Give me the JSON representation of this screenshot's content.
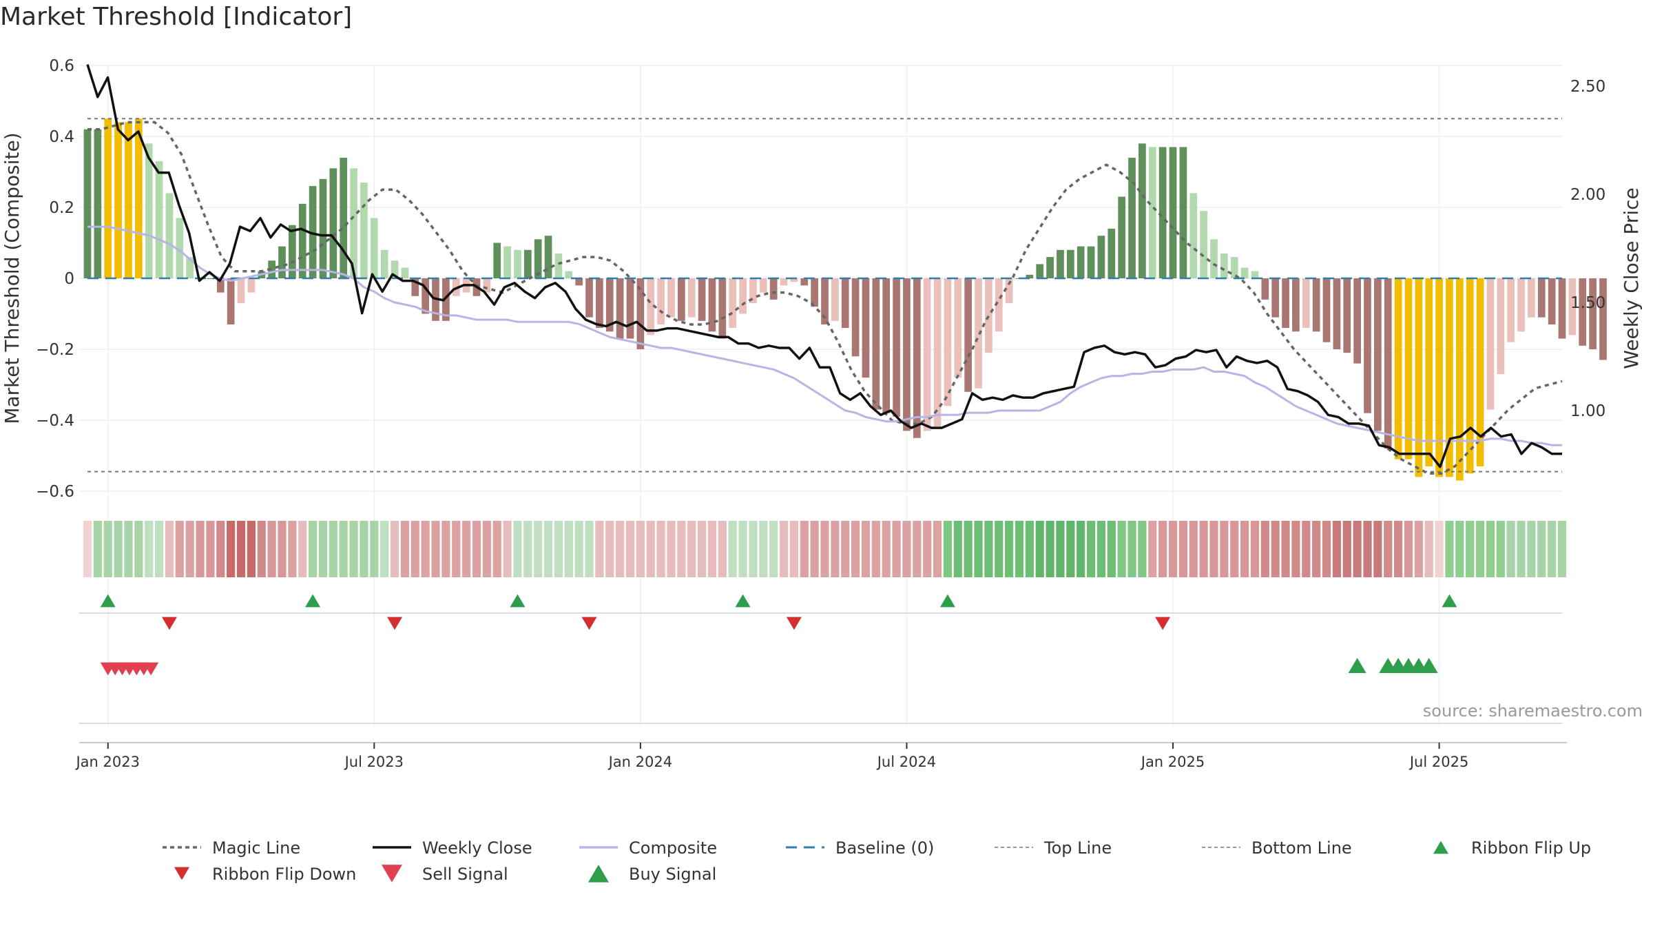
{
  "title": "Market Threshold [Indicator]",
  "source": "source: sharemaestro.com",
  "chart_data": {
    "type": "bar",
    "title": "Market Threshold [Indicator]",
    "ylabel": "Market Threshold (Composite)",
    "y2label": "Weekly Close Price",
    "ylim": [
      -0.62,
      0.62
    ],
    "y2lim": [
      0.6,
      2.62
    ],
    "yticks": [
      0.6,
      0.4,
      0.2,
      0,
      -0.2,
      -0.4,
      -0.6
    ],
    "yticklabels": [
      "0.6",
      "0.4",
      "0.2",
      "0",
      "−0.2",
      "−0.4",
      "−0.6"
    ],
    "y2ticks": [
      2.5,
      2.0,
      1.5,
      1.0
    ],
    "y2ticklabels": [
      "2.50",
      "2.00",
      "1.50",
      "1.00"
    ],
    "xticklabels": [
      "Jan 2023",
      "Jul 2023",
      "Jan 2024",
      "Jul 2024",
      "Jan 2025",
      "Jul 2025"
    ],
    "xtick_index": [
      2,
      28,
      54,
      80,
      106,
      132
    ],
    "n_weeks": 145,
    "top_line": 0.45,
    "bottom_line": -0.545,
    "baseline": 0,
    "grid": true,
    "legend_position": "bottom",
    "composite_bars": [
      0.42,
      0.42,
      0.45,
      0.44,
      0.44,
      0.45,
      0.38,
      0.33,
      0.24,
      0.17,
      0.06,
      0,
      0,
      -0.04,
      -0.13,
      -0.07,
      -0.04,
      0.02,
      0.05,
      0.09,
      0.15,
      0.21,
      0.26,
      0.28,
      0.31,
      0.34,
      0.31,
      0.27,
      0.17,
      0.08,
      0.05,
      0.03,
      -0.05,
      -0.1,
      -0.12,
      -0.12,
      -0.05,
      -0.04,
      -0.05,
      -0.04,
      0.1,
      0.09,
      0.08,
      0.08,
      0.11,
      0.12,
      0.07,
      0.02,
      -0.02,
      -0.11,
      -0.14,
      -0.15,
      -0.17,
      -0.17,
      -0.2,
      -0.16,
      -0.13,
      -0.11,
      -0.12,
      -0.11,
      -0.12,
      -0.15,
      -0.17,
      -0.14,
      -0.1,
      -0.07,
      -0.04,
      -0.06,
      -0.02,
      -0.01,
      -0.02,
      -0.08,
      -0.13,
      -0.12,
      -0.14,
      -0.22,
      -0.28,
      -0.37,
      -0.38,
      -0.39,
      -0.43,
      -0.45,
      -0.43,
      -0.42,
      -0.36,
      -0.28,
      -0.32,
      -0.31,
      -0.21,
      -0.15,
      -0.07,
      0,
      0.01,
      0.04,
      0.06,
      0.08,
      0.08,
      0.09,
      0.09,
      0.12,
      0.14,
      0.23,
      0.34,
      0.38,
      0.37,
      0.37,
      0.37,
      0.37,
      0.24,
      0.19,
      0.11,
      0.07,
      0.06,
      0.03,
      0.02,
      -0.06,
      -0.11,
      -0.14,
      -0.15,
      -0.14,
      -0.15,
      -0.18,
      -0.2,
      -0.21,
      -0.24,
      -0.38,
      -0.43,
      -0.48,
      -0.51,
      -0.51,
      -0.56,
      -0.53,
      -0.56,
      -0.56,
      -0.57,
      -0.55,
      -0.53,
      -0.37,
      -0.27,
      -0.18,
      -0.15,
      -0.11,
      -0.11,
      -0.13,
      -0.17,
      -0.16,
      -0.19,
      -0.2,
      -0.23
    ],
    "bar_colors": {
      "strong_positive": "#5f8f5b",
      "weak_positive": "#b2d9ae",
      "strong_negative": "#aa7672",
      "weak_negative": "#ebc0bb",
      "extreme": "#f2bc00"
    },
    "magic_line": [
      0.42,
      0.42,
      0.43,
      0.44,
      0.44,
      0.44,
      0.41,
      0.35,
      0.25,
      0.15,
      0.06,
      0.02,
      0.02,
      0.02,
      0.03,
      0.04,
      0.06,
      0.08,
      0.11,
      0.14,
      0.18,
      0.22,
      0.25,
      0.25,
      0.22,
      0.18,
      0.13,
      0.08,
      0.02,
      -0.02,
      -0.03,
      -0.04,
      -0.02,
      0.0,
      0.02,
      0.04,
      0.05,
      0.06,
      0.06,
      0.05,
      0.02,
      -0.02,
      -0.07,
      -0.1,
      -0.12,
      -0.13,
      -0.13,
      -0.12,
      -0.1,
      -0.07,
      -0.05,
      -0.04,
      -0.04,
      -0.05,
      -0.07,
      -0.11,
      -0.18,
      -0.26,
      -0.32,
      -0.36,
      -0.4,
      -0.41,
      -0.41,
      -0.39,
      -0.34,
      -0.27,
      -0.2,
      -0.12,
      -0.06,
      0.0,
      0.08,
      0.14,
      0.2,
      0.25,
      0.28,
      0.3,
      0.32,
      0.3,
      0.27,
      0.22,
      0.18,
      0.14,
      0.1,
      0.07,
      0.04,
      0.02,
      0.0,
      -0.04,
      -0.1,
      -0.15,
      -0.2,
      -0.24,
      -0.28,
      -0.32,
      -0.36,
      -0.4,
      -0.44,
      -0.48,
      -0.51,
      -0.53,
      -0.55,
      -0.55,
      -0.53,
      -0.49,
      -0.45,
      -0.41,
      -0.37,
      -0.34,
      -0.31,
      -0.3,
      -0.29
    ],
    "magic_line_start_index": 0,
    "magic_line_step": 1.3,
    "weekly_close": [
      2.6,
      2.45,
      2.54,
      2.3,
      2.25,
      2.29,
      2.17,
      2.1,
      2.1,
      1.95,
      1.82,
      1.6,
      1.64,
      1.6,
      1.68,
      1.85,
      1.83,
      1.89,
      1.8,
      1.86,
      1.83,
      1.84,
      1.82,
      1.81,
      1.81,
      1.75,
      1.68,
      1.45,
      1.63,
      1.55,
      1.63,
      1.6,
      1.6,
      1.58,
      1.52,
      1.51,
      1.56,
      1.58,
      1.58,
      1.55,
      1.49,
      1.57,
      1.59,
      1.55,
      1.52,
      1.57,
      1.59,
      1.55,
      1.47,
      1.42,
      1.4,
      1.39,
      1.41,
      1.39,
      1.41,
      1.37,
      1.37,
      1.38,
      1.38,
      1.37,
      1.36,
      1.35,
      1.34,
      1.34,
      1.31,
      1.31,
      1.29,
      1.3,
      1.29,
      1.29,
      1.24,
      1.29,
      1.2,
      1.2,
      1.08,
      1.05,
      1.08,
      1.02,
      0.98,
      1.0,
      0.95,
      0.92,
      0.94,
      0.92,
      0.92,
      0.94,
      0.96,
      1.08,
      1.05,
      1.06,
      1.05,
      1.07,
      1.06,
      1.06,
      1.08,
      1.09,
      1.1,
      1.11,
      1.27,
      1.29,
      1.3,
      1.27,
      1.26,
      1.27,
      1.26,
      1.2,
      1.21,
      1.24,
      1.25,
      1.28,
      1.27,
      1.28,
      1.2,
      1.25,
      1.23,
      1.22,
      1.23,
      1.2,
      1.1,
      1.09,
      1.07,
      1.04,
      0.98,
      0.97,
      0.94,
      0.94,
      0.93,
      0.84,
      0.83,
      0.8,
      0.8,
      0.8,
      0.8,
      0.74,
      0.87,
      0.88,
      0.92,
      0.88,
      0.92,
      0.88,
      0.89,
      0.8,
      0.85,
      0.83,
      0.8,
      0.8
    ],
    "composite_line": [
      1.85,
      1.85,
      1.85,
      1.84,
      1.83,
      1.82,
      1.81,
      1.79,
      1.77,
      1.74,
      1.7,
      1.66,
      1.63,
      1.61,
      1.6,
      1.61,
      1.62,
      1.63,
      1.64,
      1.65,
      1.65,
      1.65,
      1.65,
      1.65,
      1.64,
      1.63,
      1.61,
      1.57,
      1.55,
      1.52,
      1.5,
      1.49,
      1.48,
      1.46,
      1.45,
      1.44,
      1.44,
      1.43,
      1.42,
      1.42,
      1.42,
      1.42,
      1.41,
      1.41,
      1.41,
      1.41,
      1.41,
      1.41,
      1.4,
      1.38,
      1.36,
      1.34,
      1.33,
      1.32,
      1.31,
      1.3,
      1.29,
      1.29,
      1.28,
      1.27,
      1.26,
      1.25,
      1.24,
      1.23,
      1.22,
      1.21,
      1.2,
      1.19,
      1.17,
      1.15,
      1.12,
      1.09,
      1.06,
      1.03,
      1.0,
      0.99,
      0.97,
      0.96,
      0.95,
      0.95,
      0.96,
      0.97,
      0.97,
      0.98,
      0.98,
      0.98,
      0.99,
      0.99,
      0.99,
      1.0,
      1.0,
      1.0,
      1.0,
      1.0,
      1.02,
      1.04,
      1.08,
      1.11,
      1.13,
      1.15,
      1.16,
      1.16,
      1.17,
      1.17,
      1.18,
      1.18,
      1.19,
      1.19,
      1.19,
      1.2,
      1.18,
      1.18,
      1.17,
      1.16,
      1.13,
      1.11,
      1.08,
      1.05,
      1.02,
      1.0,
      0.98,
      0.96,
      0.94,
      0.93,
      0.92,
      0.91,
      0.9,
      0.89,
      0.88,
      0.87,
      0.86,
      0.86,
      0.86,
      0.86,
      0.86,
      0.86,
      0.86,
      0.87,
      0.87,
      0.86,
      0.86,
      0.85,
      0.85,
      0.84,
      0.84
    ],
    "ribbon": [
      "#f2d3d3",
      "#a6d4a6",
      "#a6d4a6",
      "#a6d4a6",
      "#a6d4a6",
      "#a6d4a6",
      "#c0dfc0",
      "#c0dfc0",
      "#e6bcbc",
      "#dca2a2",
      "#dca2a2",
      "#d89898",
      "#d89898",
      "#d08a8a",
      "#c86a6a",
      "#c86a6a",
      "#c86a6a",
      "#d08a8a",
      "#d89898",
      "#d89898",
      "#dca2a2",
      "#e6bcbc",
      "#a6d4a6",
      "#a6d4a6",
      "#a6d4a6",
      "#a6d4a6",
      "#a6d4a6",
      "#a6d4a6",
      "#a6d4a6",
      "#c0dfc0",
      "#e6bcbc",
      "#dca2a2",
      "#dca2a2",
      "#dca2a2",
      "#dca2a2",
      "#dca2a2",
      "#dca2a2",
      "#dca2a2",
      "#dca2a2",
      "#dca2a2",
      "#dca2a2",
      "#e6bcbc",
      "#c0dfc0",
      "#c0dfc0",
      "#c0dfc0",
      "#c0dfc0",
      "#c0dfc0",
      "#c0dfc0",
      "#c0dfc0",
      "#c0dfc0",
      "#e6bcbc",
      "#e6bcbc",
      "#e6bcbc",
      "#e6bcbc",
      "#e6bcbc",
      "#e6bcbc",
      "#e6bcbc",
      "#e6bcbc",
      "#e6bcbc",
      "#e6bcbc",
      "#e6bcbc",
      "#e6bcbc",
      "#e6bcbc",
      "#c0dfc0",
      "#c0dfc0",
      "#c0dfc0",
      "#c0dfc0",
      "#c0dfc0",
      "#e6bcbc",
      "#e6bcbc",
      "#dca2a2",
      "#dca2a2",
      "#dca2a2",
      "#dca2a2",
      "#dca2a2",
      "#dca2a2",
      "#dca2a2",
      "#dca2a2",
      "#dca2a2",
      "#dca2a2",
      "#dca2a2",
      "#dca2a2",
      "#dca2a2",
      "#dca2a2",
      "#81c784",
      "#6dbd74",
      "#6dbd74",
      "#6dbd74",
      "#6dbd74",
      "#6dbd74",
      "#6dbd74",
      "#6dbd74",
      "#6dbd74",
      "#5fb56a",
      "#5fb56a",
      "#5fb56a",
      "#5fb56a",
      "#5fb56a",
      "#6dbd74",
      "#6dbd74",
      "#6dbd74",
      "#81c784",
      "#81c784",
      "#81c784",
      "#dca2a2",
      "#d89898",
      "#d89898",
      "#d89898",
      "#d89898",
      "#d89898",
      "#d89898",
      "#d89898",
      "#d89898",
      "#d89898",
      "#d89898",
      "#d08a8a",
      "#d08a8a",
      "#d08a8a",
      "#d08a8a",
      "#d08a8a",
      "#d08a8a",
      "#d08a8a",
      "#c87a7a",
      "#c87a7a",
      "#c87a7a",
      "#c87a7a",
      "#c87a7a",
      "#d08a8a",
      "#d08a8a",
      "#d89898",
      "#dca2a2",
      "#e6bcbc",
      "#f2d3d3",
      "#8fce8f",
      "#8fce8f",
      "#8fce8f",
      "#8fce8f",
      "#8fce8f",
      "#8fce8f",
      "#a6d4a6",
      "#a6d4a6",
      "#a6d4a6",
      "#a6d4a6",
      "#a6d4a6",
      "#a6d4a6"
    ],
    "ribbon_flip_up": [
      2,
      22,
      42,
      64,
      84,
      133
    ],
    "ribbon_flip_down": [
      8,
      30,
      49,
      69,
      105
    ],
    "sell_signals": [
      2.0,
      2.7,
      3.4,
      4.1,
      4.8,
      5.5,
      6.2
    ],
    "buy_signals": [
      124,
      127,
      128,
      129,
      130,
      131
    ],
    "legend": [
      {
        "label": "Magic Line",
        "kind": "dotted",
        "color": "#666666"
      },
      {
        "label": "Weekly Close",
        "kind": "solid",
        "color": "#111111"
      },
      {
        "label": "Composite",
        "kind": "solid",
        "color": "#b8b4e6"
      },
      {
        "label": "Baseline (0)",
        "kind": "dashed",
        "color": "#2f7fa8"
      },
      {
        "label": "Top Line",
        "kind": "thin-dotted",
        "color": "#999999"
      },
      {
        "label": "Bottom Line",
        "kind": "thin-dotted",
        "color": "#999999"
      },
      {
        "label": "Ribbon Flip Up",
        "kind": "tri-up-small",
        "color": "#2e9e4a"
      },
      {
        "label": "Ribbon Flip Down",
        "kind": "tri-down-small",
        "color": "#d32f2f"
      },
      {
        "label": "Sell Signal",
        "kind": "tri-down-big",
        "color": "#e04050"
      },
      {
        "label": "Buy Signal",
        "kind": "tri-up-big",
        "color": "#2e9e4a"
      }
    ]
  }
}
